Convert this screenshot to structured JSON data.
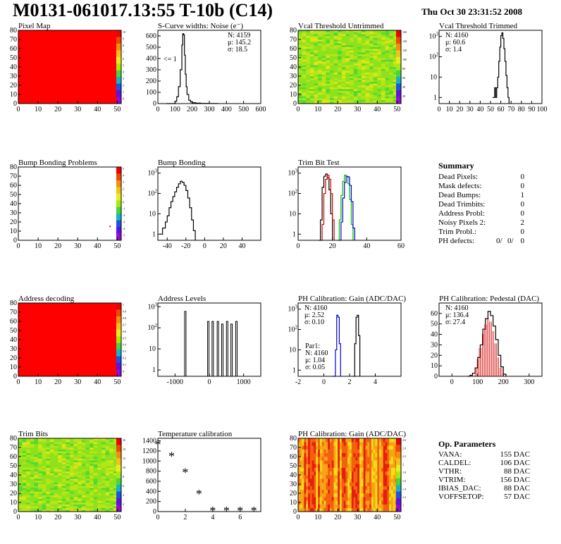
{
  "header": {
    "title": "M0131-061017.13:55 T-10b (C14)",
    "date": "Thu Oct 30 23:31:52 2008"
  },
  "colors": {
    "uniform_map": "#ff0000",
    "histogram": "#000000",
    "red_series": "#d40000",
    "green_series": "#00c000",
    "blue_series": "#0000d0"
  },
  "chart_data": [
    {
      "id": "pixel_map",
      "type": "heatmap",
      "title": "Pixel Map",
      "fill": "uniform-red",
      "xlim": [
        0,
        52
      ],
      "ylim": [
        0,
        80
      ],
      "xticks": [
        0,
        10,
        20,
        30,
        40,
        50
      ],
      "yticks": [
        0,
        10,
        20,
        30,
        40,
        50,
        60,
        70,
        80
      ],
      "z_range": [
        0,
        10
      ],
      "z_ticks": [
        10,
        9,
        8,
        7,
        6,
        5,
        4,
        3,
        2,
        1,
        0
      ]
    },
    {
      "id": "scurve_widths",
      "type": "line",
      "title": "S-Curve widths: Noise (e⁻)",
      "xlim": [
        0,
        600
      ],
      "ylim": [
        0,
        650
      ],
      "xticks": [
        0,
        100,
        200,
        300,
        400,
        500,
        600
      ],
      "yticks": [
        0,
        100,
        200,
        300,
        400,
        500,
        600
      ],
      "x": [
        50,
        90,
        100,
        110,
        120,
        130,
        140,
        145,
        150,
        155,
        160,
        165,
        170,
        180,
        190,
        200,
        220,
        250,
        300,
        350
      ],
      "y": [
        0,
        0,
        20,
        60,
        150,
        300,
        520,
        620,
        610,
        430,
        260,
        150,
        80,
        30,
        15,
        8,
        4,
        2,
        1,
        0
      ],
      "annotations": [
        "<= 1"
      ],
      "stats": [
        "N: 4159",
        "μ: 145.2",
        "σ: 18.5"
      ]
    },
    {
      "id": "vcal_untrimmed",
      "type": "heatmap",
      "title": "Vcal Threshold Untrimmed",
      "fill": "noisy-green-yellow",
      "xlim": [
        0,
        52
      ],
      "ylim": [
        0,
        80
      ],
      "xticks": [
        0,
        10,
        20,
        30,
        40,
        50
      ],
      "yticks": [
        0,
        10,
        20,
        30,
        40,
        50,
        60,
        70,
        80
      ],
      "z_ticks": [
        160,
        140,
        120,
        100,
        80,
        60,
        40,
        20
      ]
    },
    {
      "id": "vcal_trimmed",
      "type": "line",
      "title": "Vcal Threshold Trimmed",
      "log_y": true,
      "xlim": [
        0,
        100
      ],
      "ylim": [
        0.5,
        2000
      ],
      "xticks": [
        0,
        10,
        20,
        30,
        40,
        50,
        60,
        70,
        80,
        90,
        100
      ],
      "yticks": [
        1,
        10,
        100,
        1000
      ],
      "x": [
        52,
        53,
        54,
        55,
        56,
        57,
        58,
        59,
        60,
        61,
        62,
        63,
        64,
        65,
        66,
        67,
        68
      ],
      "y": [
        1,
        1,
        3,
        1,
        3,
        10,
        60,
        300,
        1100,
        1500,
        800,
        250,
        60,
        12,
        3,
        1,
        0.5
      ],
      "stats": [
        "N: 4160",
        "μ: 60.6",
        "σ: 1.4"
      ]
    },
    {
      "id": "bump_problems",
      "type": "heatmap",
      "title": "Bump Bonding Problems",
      "fill": "mostly-empty",
      "xlim": [
        0,
        52
      ],
      "ylim": [
        0,
        80
      ],
      "xticks": [
        0,
        10,
        20,
        30,
        40,
        50
      ],
      "yticks": [
        0,
        10,
        20,
        30,
        40,
        50,
        60,
        70,
        80
      ],
      "z_ticks": [
        5,
        4,
        3,
        2,
        1,
        0,
        -1,
        -2,
        -3,
        -4,
        -5
      ],
      "points": [
        [
          46,
          16
        ]
      ]
    },
    {
      "id": "bump_bonding",
      "type": "line",
      "title": "Bump Bonding",
      "log_y": true,
      "xlim": [
        -50,
        60
      ],
      "ylim": [
        0.5,
        2000
      ],
      "xticks": [
        -40,
        -20,
        0,
        20,
        40
      ],
      "yticks": [
        1,
        10,
        100,
        1000
      ],
      "x": [
        -48,
        -45,
        -42,
        -40,
        -38,
        -36,
        -34,
        -32,
        -30,
        -28,
        -26,
        -24,
        -22,
        -20,
        -18,
        -16,
        -14,
        -12,
        -10
      ],
      "y": [
        1,
        2,
        4,
        8,
        20,
        40,
        70,
        120,
        200,
        300,
        400,
        350,
        250,
        140,
        60,
        20,
        5,
        1.5,
        0.5
      ]
    },
    {
      "id": "trim_bit_test",
      "type": "line",
      "title": "Trim Bit Test",
      "log_y": true,
      "xlim": [
        0,
        60
      ],
      "ylim": [
        0.5,
        2000
      ],
      "xticks": [
        0,
        20,
        40,
        60
      ],
      "yticks": [
        1,
        10,
        100,
        1000
      ],
      "series": [
        {
          "color": "black",
          "x": [
            12,
            13,
            14,
            15,
            16,
            17,
            18,
            19,
            20
          ],
          "y": [
            0.5,
            5,
            200,
            700,
            900,
            600,
            150,
            10,
            0.5
          ]
        },
        {
          "color": "red",
          "x": [
            13,
            14,
            15,
            16,
            17,
            18,
            19,
            20,
            21
          ],
          "y": [
            0.5,
            3,
            100,
            500,
            800,
            500,
            100,
            5,
            0.5
          ]
        },
        {
          "color": "green",
          "x": [
            23,
            24,
            25,
            26,
            27,
            28,
            29,
            30,
            31,
            32
          ],
          "y": [
            0.5,
            5,
            80,
            400,
            800,
            700,
            300,
            50,
            3,
            0.5
          ]
        },
        {
          "color": "blue",
          "x": [
            24,
            25,
            26,
            27,
            28,
            29,
            30,
            31,
            32,
            33
          ],
          "y": [
            0.5,
            4,
            60,
            350,
            700,
            650,
            250,
            40,
            2,
            0.5
          ]
        }
      ]
    },
    {
      "id": "address_decoding",
      "type": "heatmap",
      "title": "Address decoding",
      "fill": "uniform-red",
      "xlim": [
        0,
        52
      ],
      "ylim": [
        0,
        80
      ],
      "xticks": [
        0,
        10,
        20,
        30,
        40,
        50
      ],
      "yticks": [
        0,
        10,
        20,
        30,
        40,
        50,
        60,
        70,
        80
      ],
      "z_ticks": [
        1,
        0.9,
        0.8,
        0.7,
        0.6,
        0.5,
        0.4,
        0.3,
        0.2,
        0.1,
        0
      ]
    },
    {
      "id": "address_levels",
      "type": "line",
      "title": "Address Levels",
      "log_y": true,
      "xlim": [
        -1500,
        1500
      ],
      "ylim": [
        0.5,
        1500
      ],
      "xticks": [
        -1000,
        0,
        1000
      ],
      "yticks": [
        1,
        10,
        100,
        1000
      ],
      "peaks": [
        {
          "center": -700,
          "height": 600
        },
        {
          "center": -30,
          "height": 200
        },
        {
          "center": 100,
          "height": 200
        },
        {
          "center": 250,
          "height": 200
        },
        {
          "center": 380,
          "height": 150
        },
        {
          "center": 520,
          "height": 200
        },
        {
          "center": 650,
          "height": 150
        },
        {
          "center": 790,
          "height": 200
        }
      ]
    },
    {
      "id": "ph_gain",
      "type": "line",
      "title": "PH Calibration: Gain (ADC/DAC)",
      "log_y": true,
      "xlim": [
        -2,
        6
      ],
      "ylim": [
        0.5,
        2000
      ],
      "xticks": [
        -2,
        0,
        2,
        4
      ],
      "yticks": [
        1,
        10,
        100,
        1000
      ],
      "series": [
        {
          "color": "black",
          "x": [
            2.3,
            2.4,
            2.5,
            2.6,
            2.7,
            2.8
          ],
          "y": [
            0.5,
            20,
            400,
            500,
            50,
            0.5
          ]
        },
        {
          "color": "blue",
          "x": [
            0.7,
            0.9,
            1.0,
            1.1,
            1.2,
            1.3
          ],
          "y": [
            0.5,
            10,
            500,
            400,
            20,
            0.5
          ]
        }
      ],
      "stats": [
        "N: 4160",
        "μ: 2.52",
        "σ: 0.10"
      ],
      "par_stats": [
        "Par1:",
        "N: 4160",
        "μ: 1.04",
        "σ: 0.05"
      ]
    },
    {
      "id": "ph_pedestal",
      "type": "line",
      "title": "PH Calibration: Pedestal (DAC)",
      "xlim": [
        -50,
        350
      ],
      "ylim": [
        0,
        70
      ],
      "xticks": [
        0,
        100,
        200,
        300
      ],
      "yticks": [
        0,
        10,
        20,
        30,
        40,
        50,
        60
      ],
      "x": [
        60,
        70,
        80,
        90,
        100,
        110,
        120,
        130,
        140,
        150,
        160,
        170,
        180,
        190,
        200,
        210
      ],
      "y": [
        0,
        1,
        3,
        8,
        18,
        30,
        45,
        55,
        62,
        58,
        48,
        35,
        20,
        9,
        2,
        0
      ],
      "stats": [
        "N: 4160",
        "μ: 136.4",
        "σ: 27.4"
      ]
    },
    {
      "id": "trim_bits",
      "type": "heatmap",
      "title": "Trim Bits",
      "fill": "noisy-green-yellow",
      "xlim": [
        0,
        52
      ],
      "ylim": [
        0,
        80
      ],
      "xticks": [
        0,
        10,
        20,
        30,
        40,
        50
      ],
      "yticks": [
        0,
        10,
        20,
        30,
        40,
        50,
        60,
        70,
        80
      ],
      "z_ticks": [
        16,
        14,
        12,
        10,
        8,
        6,
        4,
        2
      ]
    },
    {
      "id": "temperature_calibration",
      "type": "scatter",
      "title": "Temperature calibration",
      "xlim": [
        0,
        7.5
      ],
      "ylim": [
        0,
        1450
      ],
      "xticks": [
        0,
        2,
        4,
        6
      ],
      "yticks": [
        0,
        200,
        400,
        600,
        800,
        1000,
        1200,
        1400
      ],
      "x": [
        0,
        1,
        2,
        3,
        4,
        5,
        6,
        7
      ],
      "y": [
        1340,
        1110,
        790,
        360,
        30,
        30,
        30,
        30
      ]
    },
    {
      "id": "ph_gain_map",
      "type": "heatmap",
      "title": "PH Calibration: Gain (ADC/DAC)",
      "fill": "red-yellow-stripes",
      "xlim": [
        0,
        52
      ],
      "ylim": [
        0,
        80
      ],
      "xticks": [
        0,
        10,
        20,
        30,
        40,
        50
      ],
      "yticks": [
        0,
        10,
        20,
        30,
        40,
        50,
        60,
        70,
        80
      ],
      "z_ticks": [
        2.6,
        2.4,
        2.2,
        2.0,
        1.8,
        1.6,
        1.4,
        1.2,
        1.0
      ]
    }
  ],
  "summary": {
    "heading": "Summary",
    "rows": [
      {
        "label": "Dead Pixels:",
        "value": "0"
      },
      {
        "label": "Mask defects:",
        "value": "0"
      },
      {
        "label": "Dead Bumps:",
        "value": "1"
      },
      {
        "label": "Dead Trimbits:",
        "value": "0"
      },
      {
        "label": "Address Probl:",
        "value": "0"
      },
      {
        "label": "Noisy Pixels 2:",
        "value": "2"
      },
      {
        "label": "Trim Probl.:",
        "value": "0"
      }
    ],
    "ph_defects": {
      "label": "PH defects:",
      "black": "0/",
      "red": "0/",
      "blue": "0"
    }
  },
  "op_parameters": {
    "heading": "Op. Parameters",
    "rows": [
      {
        "label": "VANA:",
        "value": "155 DAC"
      },
      {
        "label": "CALDEL:",
        "value": "106 DAC"
      },
      {
        "label": "VTHR:",
        "value": "88 DAC"
      },
      {
        "label": "VTRIM:",
        "value": "156 DAC"
      },
      {
        "label": "IBIAS_DAC:",
        "value": "88 DAC"
      },
      {
        "label": "VOFFSETOP:",
        "value": "57 DAC"
      }
    ]
  }
}
